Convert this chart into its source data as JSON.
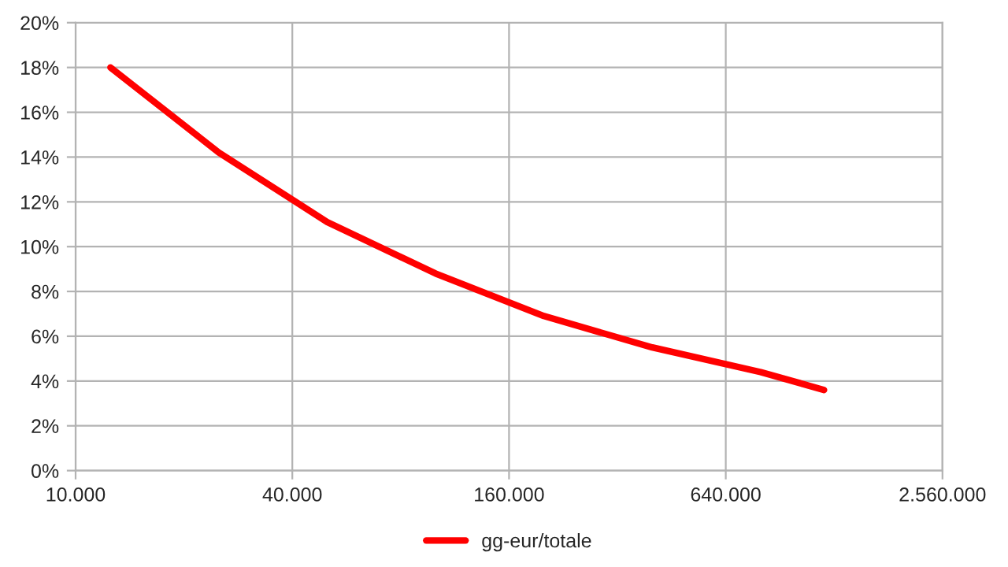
{
  "chart_data": {
    "type": "line",
    "log": "x",
    "x": [
      12500,
      25000,
      50000,
      100000,
      200000,
      400000,
      800000,
      1200000
    ],
    "series": [
      {
        "name": "gg-eur/totale",
        "color": "#ff0000",
        "values": [
          18.0,
          14.2,
          11.1,
          8.8,
          6.9,
          5.5,
          4.4,
          3.6
        ]
      }
    ],
    "xlim": [
      10000,
      2560000
    ],
    "xticks": [
      {
        "value": 10000,
        "label": "10.000"
      },
      {
        "value": 40000,
        "label": "40.000"
      },
      {
        "value": 160000,
        "label": "160.000"
      },
      {
        "value": 640000,
        "label": "640.000"
      },
      {
        "value": 2560000,
        "label": "2.560.000"
      }
    ],
    "ylim": [
      0,
      20
    ],
    "yticks": [
      {
        "value": 0,
        "label": "0%"
      },
      {
        "value": 2,
        "label": "2%"
      },
      {
        "value": 4,
        "label": "4%"
      },
      {
        "value": 6,
        "label": "6%"
      },
      {
        "value": 8,
        "label": "8%"
      },
      {
        "value": 10,
        "label": "10%"
      },
      {
        "value": 12,
        "label": "12%"
      },
      {
        "value": 14,
        "label": "14%"
      },
      {
        "value": 16,
        "label": "16%"
      },
      {
        "value": 18,
        "label": "18%"
      },
      {
        "value": 20,
        "label": "20%"
      }
    ],
    "grid": true,
    "legend": "bottom",
    "marker": "none",
    "line_style": "solid"
  }
}
